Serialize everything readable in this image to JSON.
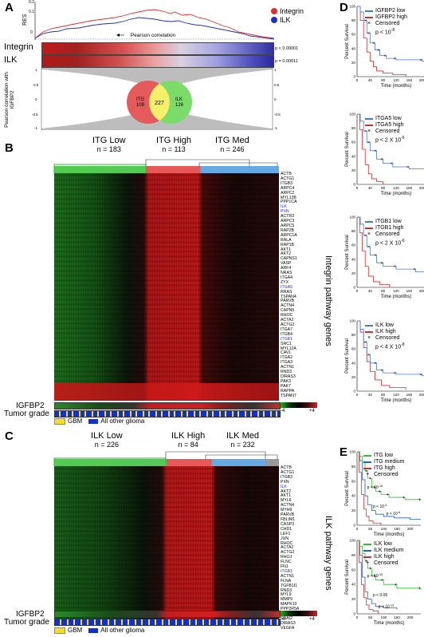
{
  "panelA": {
    "label": "A",
    "res_label": "RES",
    "ytick_top": "0.2",
    "ytick_mid": "0.1",
    "ytick_low": "0",
    "legend": [
      {
        "name": "Integrin",
        "color": "#e03030"
      },
      {
        "name": "ILK",
        "color": "#2030c0"
      }
    ],
    "pearson_label": "Pearson correlation",
    "row_integrin": "Integrin",
    "row_ilk": "ILK",
    "p_integrin": "p < 0.00001",
    "p_ilk": "p = 0.00011",
    "corr_axis_label": "Pearson correlation with IGFBP2",
    "corr_ticks": [
      "1",
      "0.5",
      "0",
      "-0.5",
      "-1"
    ],
    "venn": {
      "left_label": "ITG",
      "left_n": "109",
      "mid_n": "227",
      "right_label": "ILK",
      "right_n": "126"
    }
  },
  "panelB": {
    "label": "B",
    "groups": [
      {
        "name": "ITG Low",
        "n": "n = 183"
      },
      {
        "name": "ITG High",
        "n": "n = 113"
      },
      {
        "name": "ITG Med",
        "n": "n = 246"
      }
    ],
    "side_title": "Integrin pathway genes",
    "genes": [
      {
        "g": "ACTB",
        "b": false
      },
      {
        "g": "ACTG1",
        "b": false
      },
      {
        "g": "ITGB3",
        "b": false
      },
      {
        "g": "ARPC4",
        "b": false
      },
      {
        "g": "ARPC2",
        "b": false
      },
      {
        "g": "MYL12B",
        "b": false
      },
      {
        "g": "PPP1CA",
        "b": false
      },
      {
        "g": "ILK",
        "b": true
      },
      {
        "g": "PXN",
        "b": true
      },
      {
        "g": "ACTR3",
        "b": false
      },
      {
        "g": "ARPC3",
        "b": false
      },
      {
        "g": "ARPC5",
        "b": false
      },
      {
        "g": "RAP2B",
        "b": false
      },
      {
        "g": "ARPC1A",
        "b": false
      },
      {
        "g": "RALA",
        "b": false
      },
      {
        "g": "RAP1B",
        "b": false
      },
      {
        "g": "AKT1",
        "b": false
      },
      {
        "g": "AKT2",
        "b": false
      },
      {
        "g": "CAPNS1",
        "b": false
      },
      {
        "g": "VASP",
        "b": false
      },
      {
        "g": "ARF4",
        "b": false
      },
      {
        "g": "NRAS",
        "b": false
      },
      {
        "g": "ITGA4",
        "b": false
      },
      {
        "g": "ZYX",
        "b": false
      },
      {
        "g": "ITGA5",
        "b": true
      },
      {
        "g": "RRAS",
        "b": false
      },
      {
        "g": "TSPAN4",
        "b": false
      },
      {
        "g": "PARVB",
        "b": false
      },
      {
        "g": "ACTN4",
        "b": false
      },
      {
        "g": "CAPN5",
        "b": false
      },
      {
        "g": "RHOC",
        "b": false
      },
      {
        "g": "ACTA2",
        "b": false
      },
      {
        "g": "ACTG2",
        "b": false
      },
      {
        "g": "ITGA7",
        "b": false
      },
      {
        "g": "ITGB4",
        "b": false
      },
      {
        "g": "ITGB1",
        "b": true
      },
      {
        "g": "SRC1",
        "b": false
      },
      {
        "g": "MYL12A",
        "b": false
      },
      {
        "g": "CAV1",
        "b": false
      },
      {
        "g": "ITGA2",
        "b": false
      },
      {
        "g": "ITGA3",
        "b": false
      },
      {
        "g": "ACTN1",
        "b": false
      },
      {
        "g": "RND3",
        "b": false
      },
      {
        "g": "DIRAS3",
        "b": false
      },
      {
        "g": "PAK3",
        "b": false
      },
      {
        "g": "PAK7",
        "b": false
      },
      {
        "g": "RAPPA",
        "b": false
      },
      {
        "g": "TSPAN7",
        "b": false
      }
    ],
    "igfbp2_label": "IGFBP2",
    "grade_label": "Tumor grade",
    "scale_min": "-4",
    "scale_max": "+4",
    "legend_gbm": "GBM",
    "legend_other": "All other glioma"
  },
  "panelC": {
    "label": "C",
    "groups": [
      {
        "name": "ILK Low",
        "n": "n = 226"
      },
      {
        "name": "ILK High",
        "n": "n = 84"
      },
      {
        "name": "ILK Med",
        "n": "n = 232"
      }
    ],
    "side_title": "ILK pathway genes",
    "genes": [
      {
        "g": "ACTB",
        "b": false
      },
      {
        "g": "ACTG1",
        "b": false
      },
      {
        "g": "ITGB3",
        "b": false
      },
      {
        "g": "PXN",
        "b": false
      },
      {
        "g": "ILK",
        "b": true
      },
      {
        "g": "AKT2",
        "b": false
      },
      {
        "g": "AKT1",
        "b": false
      },
      {
        "g": "MYL6",
        "b": false
      },
      {
        "g": "ACTN4",
        "b": false
      },
      {
        "g": "MYH9",
        "b": false
      },
      {
        "g": "PARVB",
        "b": false
      },
      {
        "g": "FBLIM1",
        "b": false
      },
      {
        "g": "CASP3",
        "b": false
      },
      {
        "g": "CHD1",
        "b": false
      },
      {
        "g": "LEF1",
        "b": false
      },
      {
        "g": "JUN",
        "b": false
      },
      {
        "g": "RHOC",
        "b": false
      },
      {
        "g": "ACTA2",
        "b": false
      },
      {
        "g": "ACTG2",
        "b": false
      },
      {
        "g": "RHOJ",
        "b": false
      },
      {
        "g": "FLNC",
        "b": false
      },
      {
        "g": "FN1",
        "b": false
      },
      {
        "g": "ITGB1",
        "b": true
      },
      {
        "g": "ACTN1",
        "b": false
      },
      {
        "g": "FLNA",
        "b": false
      },
      {
        "g": "TGFB1I1",
        "b": false
      },
      {
        "g": "RND3",
        "b": false
      },
      {
        "g": "MYL9",
        "b": false
      },
      {
        "g": "MMP9",
        "b": false
      },
      {
        "g": "MAPK10",
        "b": false
      },
      {
        "g": "PPP2R5A",
        "b": false
      },
      {
        "g": "RICTOR",
        "b": false
      },
      {
        "g": "SNAI2",
        "b": false
      },
      {
        "g": "DIRAS3",
        "b": false
      },
      {
        "g": "VEGFA",
        "b": false
      }
    ],
    "igfbp2_label": "IGFBP2",
    "grade_label": "Tumor grade",
    "scale_min": "-4",
    "scale_max": "+4",
    "legend_gbm": "GBM",
    "legend_other": "All other glioma"
  },
  "panelD": {
    "label": "D",
    "charts": [
      {
        "low": "IGFBP2 low",
        "high": "IGFBP2 high",
        "censored": "Censored",
        "p": "p < 10",
        "exp": "-8"
      },
      {
        "low": "ITGA5 low",
        "high": "ITGA5 high",
        "censored": "Censored",
        "p": "p < 2 X 10",
        "exp": "-6"
      },
      {
        "low": "ITGB1 low",
        "high": "ITGB1 high",
        "censored": "Censored",
        "p": "p < 2 X 10",
        "exp": "-6"
      },
      {
        "low": "ILK low",
        "high": "ILK high",
        "censored": "Censored",
        "p": "p < 4 X 10",
        "exp": "-8"
      }
    ],
    "ylabel": "Percent Survival",
    "xlabel": "Time (months)",
    "yticks": [
      "0",
      "20",
      "40",
      "60",
      "80",
      "100"
    ],
    "xticks": [
      "0",
      "40",
      "80",
      "120",
      "160",
      "200",
      "240"
    ],
    "colors": {
      "low": "#4a78d0",
      "high": "#d03030"
    }
  },
  "panelE": {
    "label": "E",
    "charts": [
      {
        "a": "ITG low",
        "b": "ITG medium",
        "c": "ITG high",
        "censored": "Censored",
        "p1": "p < 10",
        "e1": "-16",
        "p2": "p < 10",
        "e2": "-4",
        "p3": "p < 10",
        "e3": "-6"
      },
      {
        "a": "ILK low",
        "b": "ILK medium",
        "c": "ILK high",
        "censored": "Censored",
        "p1": "p < 10",
        "e1": "-15",
        "p2": "p < 0.05",
        "e2": "",
        "p3": "p < 10",
        "e3": "-13"
      }
    ],
    "ylabel": "Percent Survival",
    "xlabel": "Time (months)",
    "yticks": [
      "0",
      "20",
      "40",
      "60",
      "80",
      "100"
    ],
    "xticks": [
      "0",
      "50",
      "100",
      "150",
      "200"
    ],
    "colors": {
      "low": "#30c030",
      "medium": "#2060d0",
      "high": "#d03030"
    }
  }
}
